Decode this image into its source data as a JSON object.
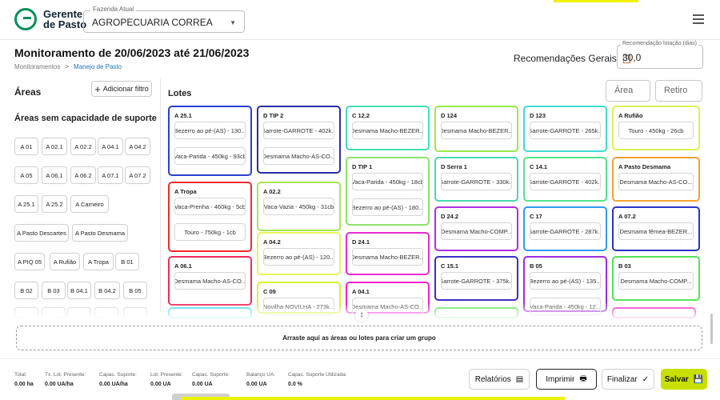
{
  "app": {
    "logo_line1": "Gerente",
    "logo_line2": "de Pasto",
    "farm_legend": "Fazenda Atual",
    "farm_value": "AGROPECUARIA CORREA"
  },
  "page": {
    "title": "Monitoramento de 20/06/2023 até 21/06/2023",
    "breadcrumb": [
      "Monitoramentos",
      "Manejo de Pasto"
    ],
    "rec_gerais_label": "Recomendações Gerais",
    "rec_lotacao_legend": "Recomendação lotação (dias)",
    "rec_lotacao_value": "30,0"
  },
  "areas": {
    "heading": "Áreas",
    "add_filter_label": "Adicionar filtro",
    "sem_capacidade_heading": "Áreas sem capacidade de suporte",
    "chips": [
      "A 01",
      "A 02.1",
      "A 02.2",
      "A 04.1",
      "A 04.2",
      "A 05",
      "A 06.1",
      "A 06.2",
      "A 07.1",
      "A 07.2",
      "A 25.1",
      "A 25.2",
      "A Carneiro",
      "A Pasto Descartes",
      "A Pasto Desmama",
      "A PIQ 05",
      "A Rufião",
      "A Tropa",
      "B 01",
      "B 02",
      "B 03",
      "B 04.1",
      "B 04.2",
      "B 05"
    ]
  },
  "lotes": {
    "heading": "Lotes",
    "filter_area_placeholder": "Área",
    "filter_retiro_placeholder": "Retiro",
    "cards": [
      {
        "title": "A 25.1",
        "color": "#2b3fd1",
        "rows": [
          "Bezerro ao pé-(AS) - 130...",
          "Vaca-Parida - 450kg - 93cb"
        ]
      },
      {
        "title": "A Tropa",
        "color": "#f02b2b",
        "rows": [
          "Vaca-Prenha - 460kg - 5cb",
          "Touro - 750kg - 1cb"
        ]
      },
      {
        "title": "A 06.1",
        "color": "#f02b5a",
        "rows": [
          "Desmama Macho-AS-CO..."
        ]
      },
      {
        "title": "D TIP 2",
        "color": "#2a2ea6",
        "rows": [
          "Garrote-GARROTE - 402k...",
          "Desmama Macho-AS-CO..."
        ]
      },
      {
        "title": "A 02.2",
        "color": "#a6e84f",
        "rows": [
          "Vaca-Vazia - 450kg - 31cb"
        ]
      },
      {
        "title": "A 04.2",
        "color": "#e7f55a",
        "rows": [
          "Bezerro ao pé-(AS) - 120..."
        ]
      },
      {
        "title": "C 09",
        "color": "#d8f22e",
        "rows": [
          "Novilha-NOVILHA - 273k..."
        ]
      },
      {
        "title": "C 12.2",
        "color": "#43e0b8",
        "rows": [
          "Desmama Macho-BEZER..."
        ]
      },
      {
        "title": "D TIP 1",
        "color": "#8fe26b",
        "rows": [
          "Vaca-Parida - 450kg - 18cb",
          "Bezerro ao pé-(AS) - 180..."
        ]
      },
      {
        "title": "D 24.1",
        "color": "#ea2bd0",
        "rows": [
          "Desmama Macho-BEZER..."
        ]
      },
      {
        "title": "A 04.1",
        "color": "#f021c8",
        "rows": [
          "Desmama Macho-AS-CO..."
        ]
      },
      {
        "title": "D 124",
        "color": "#9be84a",
        "rows": [
          "Desmama Macho-BEZER..."
        ]
      },
      {
        "title": "D Serra 1",
        "color": "#4ad9b5",
        "rows": [
          "Garrote-GARROTE - 330k..."
        ]
      },
      {
        "title": "D 24.2",
        "color": "#b02ee0",
        "rows": [
          "Desmama Macho-COMP..."
        ]
      },
      {
        "title": "C 15.1",
        "color": "#3a2fc7",
        "rows": [
          "Garrote-GARROTE - 375k..."
        ]
      },
      {
        "title": "D 123",
        "color": "#3fdcd2",
        "rows": [
          "Garrote-GARROTE - 265k..."
        ]
      },
      {
        "title": "C 14.1",
        "color": "#55e38a",
        "rows": [
          "Garrote-GARROTE - 402k..."
        ]
      },
      {
        "title": "C 17",
        "color": "#2f9bf0",
        "rows": [
          "Garrote-GARROTE - 287k..."
        ]
      },
      {
        "title": "B 05",
        "color": "#9b2de0",
        "rows": [
          "Bezerro ao pé-(AS) - 135...",
          "Vaca-Parida - 450kg - 12..."
        ]
      },
      {
        "title": "A Rufião",
        "color": "#d8f25a",
        "rows": [
          "Touro - 450kg - 26cb"
        ]
      },
      {
        "title": "A Pasto Desmama",
        "color": "#f5a233",
        "rows": [
          "Desmama Macho-AS-CO..."
        ]
      },
      {
        "title": "A 07.2",
        "color": "#2a34c4",
        "rows": [
          "Desmama fêmea-BEZER..."
        ]
      },
      {
        "title": "B 03",
        "color": "#54e35a",
        "rows": [
          "Desmama Macho-COMP..."
        ]
      }
    ]
  },
  "dropzone_text": "Arraste aqui as áreas ou lotes para criar um grupo",
  "footer": {
    "stats": [
      {
        "label": "Total:",
        "value": "0.00 ha"
      },
      {
        "label": "Tx. Lot. Presente:",
        "value": "0.00 UA/ha"
      },
      {
        "label": "Capac. Suporte:",
        "value": "0.00 UA/ha"
      },
      {
        "label": "Lot. Presente:",
        "value": "0.00 UA"
      },
      {
        "label": "Capac. Suporte:",
        "value": "0.00 UA"
      },
      {
        "label": "Balanço UA:",
        "value": "0.00 UA"
      },
      {
        "label": "Capac. Suporte Utilizada:",
        "value": "0.0 %"
      }
    ],
    "buttons": {
      "relatorios": "Relatórios",
      "imprimir": "Imprimir",
      "finalizar": "Finalizar",
      "salvar": "Salvar"
    }
  },
  "colors": {
    "brand_green": "#0b8f5b",
    "save_button": "#c7e000",
    "link_blue": "#1e73be"
  }
}
